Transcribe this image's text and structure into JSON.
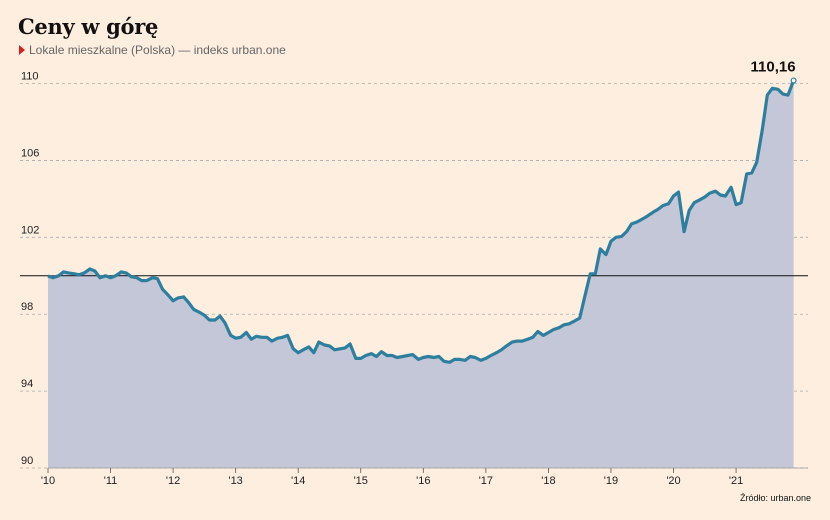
{
  "header": {
    "title": "Ceny w górę",
    "subtitle": "Lokale mieszkalne (Polska) — indeks urban.one"
  },
  "footer": {
    "source": "Źródło: urban.one"
  },
  "colors": {
    "background": "#fdeee0",
    "line": "#2e7e9e",
    "area": "#c3c7d8",
    "grid": "#aaaaaa",
    "baseline": "#111111",
    "marker": "#d81e1e"
  },
  "chart_data": {
    "type": "area",
    "title": "Ceny w górę",
    "subtitle": "Lokale mieszkalne (Polska) — indeks urban.one",
    "ylim": [
      90,
      110.6
    ],
    "xlim": [
      2010.0,
      2022.15
    ],
    "y_ticks": [
      90,
      94,
      98,
      102,
      106,
      110
    ],
    "x_ticks": [
      {
        "value": 2010,
        "label": "'10"
      },
      {
        "value": 2011,
        "label": "'11"
      },
      {
        "value": 2012,
        "label": "'12"
      },
      {
        "value": 2013,
        "label": "'13"
      },
      {
        "value": 2014,
        "label": "'14"
      },
      {
        "value": 2015,
        "label": "'15"
      },
      {
        "value": 2016,
        "label": "'16"
      },
      {
        "value": 2017,
        "label": "'17"
      },
      {
        "value": 2018,
        "label": "'18"
      },
      {
        "value": 2019,
        "label": "'19"
      },
      {
        "value": 2020,
        "label": "'20"
      },
      {
        "value": 2021,
        "label": "'21"
      }
    ],
    "reference_line": 100,
    "grid": "horizontal dashed",
    "last_value_label": "110,16",
    "series": [
      {
        "values": [
          [
            2010.0,
            99.99
          ],
          [
            2010.08,
            99.9
          ],
          [
            2010.17,
            100.0
          ],
          [
            2010.25,
            100.2
          ],
          [
            2010.33,
            100.15
          ],
          [
            2010.42,
            100.1
          ],
          [
            2010.5,
            100.05
          ],
          [
            2010.58,
            100.15
          ],
          [
            2010.67,
            100.35
          ],
          [
            2010.75,
            100.25
          ],
          [
            2010.83,
            99.9
          ],
          [
            2010.92,
            100.0
          ],
          [
            2011.0,
            99.9
          ],
          [
            2011.08,
            100.0
          ],
          [
            2011.17,
            100.2
          ],
          [
            2011.25,
            100.15
          ],
          [
            2011.33,
            99.95
          ],
          [
            2011.42,
            99.9
          ],
          [
            2011.5,
            99.75
          ],
          [
            2011.58,
            99.75
          ],
          [
            2011.67,
            99.9
          ],
          [
            2011.75,
            99.85
          ],
          [
            2011.83,
            99.3
          ],
          [
            2011.92,
            99.0
          ],
          [
            2012.0,
            98.7
          ],
          [
            2012.08,
            98.85
          ],
          [
            2012.17,
            98.9
          ],
          [
            2012.25,
            98.6
          ],
          [
            2012.33,
            98.25
          ],
          [
            2012.42,
            98.1
          ],
          [
            2012.5,
            97.95
          ],
          [
            2012.58,
            97.7
          ],
          [
            2012.67,
            97.7
          ],
          [
            2012.75,
            97.9
          ],
          [
            2012.83,
            97.55
          ],
          [
            2012.92,
            96.9
          ],
          [
            2013.0,
            96.75
          ],
          [
            2013.08,
            96.8
          ],
          [
            2013.17,
            97.05
          ],
          [
            2013.25,
            96.7
          ],
          [
            2013.33,
            96.85
          ],
          [
            2013.42,
            96.8
          ],
          [
            2013.5,
            96.8
          ],
          [
            2013.58,
            96.6
          ],
          [
            2013.67,
            96.75
          ],
          [
            2013.75,
            96.8
          ],
          [
            2013.83,
            96.9
          ],
          [
            2013.92,
            96.2
          ],
          [
            2014.0,
            96.0
          ],
          [
            2014.08,
            96.15
          ],
          [
            2014.17,
            96.3
          ],
          [
            2014.25,
            96.0
          ],
          [
            2014.33,
            96.55
          ],
          [
            2014.42,
            96.4
          ],
          [
            2014.5,
            96.35
          ],
          [
            2014.58,
            96.15
          ],
          [
            2014.67,
            96.2
          ],
          [
            2014.75,
            96.25
          ],
          [
            2014.83,
            96.45
          ],
          [
            2014.92,
            95.7
          ],
          [
            2015.0,
            95.7
          ],
          [
            2015.08,
            95.85
          ],
          [
            2015.17,
            95.95
          ],
          [
            2015.25,
            95.8
          ],
          [
            2015.33,
            96.05
          ],
          [
            2015.42,
            95.85
          ],
          [
            2015.5,
            95.85
          ],
          [
            2015.58,
            95.75
          ],
          [
            2015.67,
            95.8
          ],
          [
            2015.75,
            95.85
          ],
          [
            2015.83,
            95.9
          ],
          [
            2015.92,
            95.65
          ],
          [
            2016.0,
            95.75
          ],
          [
            2016.08,
            95.8
          ],
          [
            2016.17,
            95.75
          ],
          [
            2016.25,
            95.8
          ],
          [
            2016.33,
            95.55
          ],
          [
            2016.42,
            95.5
          ],
          [
            2016.5,
            95.65
          ],
          [
            2016.58,
            95.65
          ],
          [
            2016.67,
            95.6
          ],
          [
            2016.75,
            95.8
          ],
          [
            2016.83,
            95.75
          ],
          [
            2016.92,
            95.6
          ],
          [
            2017.0,
            95.7
          ],
          [
            2017.08,
            95.85
          ],
          [
            2017.17,
            96.0
          ],
          [
            2017.25,
            96.15
          ],
          [
            2017.33,
            96.35
          ],
          [
            2017.42,
            96.55
          ],
          [
            2017.5,
            96.6
          ],
          [
            2017.58,
            96.6
          ],
          [
            2017.67,
            96.7
          ],
          [
            2017.75,
            96.8
          ],
          [
            2017.83,
            97.1
          ],
          [
            2017.92,
            96.9
          ],
          [
            2018.0,
            97.05
          ],
          [
            2018.08,
            97.2
          ],
          [
            2018.17,
            97.3
          ],
          [
            2018.25,
            97.45
          ],
          [
            2018.33,
            97.5
          ],
          [
            2018.42,
            97.65
          ],
          [
            2018.5,
            97.8
          ],
          [
            2018.58,
            98.9
          ],
          [
            2018.67,
            100.1
          ],
          [
            2018.75,
            100.1
          ],
          [
            2018.83,
            101.4
          ],
          [
            2018.92,
            101.1
          ],
          [
            2019.0,
            101.8
          ],
          [
            2019.08,
            102.0
          ],
          [
            2019.17,
            102.05
          ],
          [
            2019.25,
            102.3
          ],
          [
            2019.33,
            102.7
          ],
          [
            2019.42,
            102.8
          ],
          [
            2019.5,
            102.95
          ],
          [
            2019.58,
            103.1
          ],
          [
            2019.67,
            103.3
          ],
          [
            2019.75,
            103.45
          ],
          [
            2019.83,
            103.65
          ],
          [
            2019.92,
            103.75
          ],
          [
            2020.0,
            104.15
          ],
          [
            2020.08,
            104.35
          ],
          [
            2020.17,
            102.3
          ],
          [
            2020.25,
            103.4
          ],
          [
            2020.33,
            103.8
          ],
          [
            2020.42,
            103.95
          ],
          [
            2020.5,
            104.1
          ],
          [
            2020.58,
            104.3
          ],
          [
            2020.67,
            104.4
          ],
          [
            2020.75,
            104.2
          ],
          [
            2020.83,
            104.15
          ],
          [
            2020.92,
            104.6
          ],
          [
            2021.0,
            103.7
          ],
          [
            2021.08,
            103.8
          ],
          [
            2021.17,
            105.3
          ],
          [
            2021.25,
            105.35
          ],
          [
            2021.33,
            105.9
          ],
          [
            2021.42,
            107.6
          ],
          [
            2021.5,
            109.4
          ],
          [
            2021.58,
            109.75
          ],
          [
            2021.67,
            109.7
          ],
          [
            2021.75,
            109.45
          ],
          [
            2021.83,
            109.4
          ],
          [
            2021.92,
            110.16
          ]
        ]
      }
    ]
  }
}
